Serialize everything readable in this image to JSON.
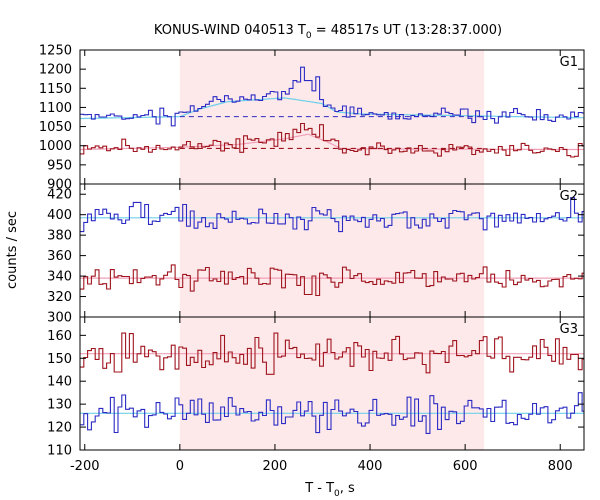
{
  "chart_data": {
    "type": "line",
    "title_prefix": "KONUS-WIND 040513 T",
    "title_sub": "0",
    "title_suffix": " = 48517s UT (13:28:37.000)",
    "ylabel": "counts / sec",
    "xlabel_prefix": "T - T",
    "xlabel_sub": "0",
    "xlabel_suffix": ", s",
    "xlim": [
      -210,
      850
    ],
    "xticks": [
      -200,
      0,
      200,
      400,
      600,
      800
    ],
    "shaded_interval": [
      0,
      640
    ],
    "colors": {
      "blue": "#2b2bc4",
      "red": "#a0141e",
      "fit_blue": "#6fd0ea",
      "fit_red": "#f2a0b8",
      "shade": "#fde9ea"
    },
    "panels": [
      {
        "label": "G1",
        "ylim": [
          900,
          1250
        ],
        "yticks": [
          900,
          950,
          1000,
          1050,
          1100,
          1150,
          1200,
          1250
        ],
        "series": [
          {
            "color": "blue",
            "baseline": 1075,
            "noise": 9,
            "bin": 8,
            "seed": 11,
            "pulse": [
              [
                -210,
                1075
              ],
              [
                0,
                1078
              ],
              [
                40,
                1095
              ],
              [
                80,
                1115
              ],
              [
                160,
                1125
              ],
              [
                230,
                1140
              ],
              [
                260,
                1155
              ],
              [
                290,
                1135
              ],
              [
                330,
                1090
              ],
              [
                380,
                1083
              ],
              [
                600,
                1080
              ],
              [
                850,
                1075
              ]
            ],
            "spikes": [
              [
                260,
                1205
              ],
              [
                290,
                1180
              ],
              [
                240,
                1170
              ],
              [
                -40,
                1098
              ],
              [
                270,
                1170
              ]
            ]
          },
          {
            "color": "red",
            "baseline": 990,
            "noise": 8,
            "bin": 8,
            "seed": 23,
            "pulse": [
              [
                -210,
                992
              ],
              [
                0,
                995
              ],
              [
                60,
                1000
              ],
              [
                150,
                1005
              ],
              [
                200,
                1015
              ],
              [
                240,
                1035
              ],
              [
                270,
                1040
              ],
              [
                310,
                1010
              ],
              [
                340,
                993
              ],
              [
                850,
                990
              ]
            ],
            "spikes": [
              [
                260,
                1058
              ],
              [
                -120,
                1017
              ],
              [
                120,
                1018
              ],
              [
                295,
                1055
              ]
            ]
          }
        ],
        "fits": [
          {
            "color": "blue",
            "points": [
              [
                -210,
                1071
              ],
              [
                0,
                1076
              ],
              [
                40,
                1095
              ],
              [
                100,
                1115
              ],
              [
                220,
                1125
              ],
              [
                300,
                1110
              ],
              [
                330,
                1088
              ],
              [
                380,
                1083
              ],
              [
                850,
                1073
              ]
            ]
          },
          {
            "color": "red",
            "points": [
              [
                -210,
                990
              ],
              [
                0,
                996
              ],
              [
                120,
                1003
              ],
              [
                220,
                1018
              ],
              [
                270,
                1030
              ],
              [
                310,
                1010
              ],
              [
                340,
                992
              ],
              [
                850,
                990
              ]
            ]
          }
        ],
        "dashed": [
          {
            "color": "blue",
            "value": 1076,
            "from": 0,
            "to": 640
          },
          {
            "color": "red",
            "value": 993,
            "from": 0,
            "to": 640
          }
        ]
      },
      {
        "label": "G2",
        "ylim": [
          300,
          430
        ],
        "yticks": [
          300,
          320,
          340,
          360,
          380,
          400,
          420
        ],
        "series": [
          {
            "color": "blue",
            "baseline": 396,
            "noise": 6,
            "bin": 8,
            "seed": 37,
            "pulse": [],
            "spikes": [
              [
                -90,
                412
              ],
              [
                -70,
                410
              ],
              [
                10,
                410
              ]
            ]
          },
          {
            "color": "red",
            "baseline": 338,
            "noise": 5,
            "bin": 8,
            "seed": 51,
            "pulse": [],
            "spikes": [
              [
                270,
                322
              ],
              [
                290,
                321
              ],
              [
                640,
                349
              ]
            ]
          }
        ],
        "fits": [
          {
            "color": "blue",
            "points": [
              [
                -210,
                397
              ],
              [
                850,
                397
              ]
            ]
          },
          {
            "color": "red",
            "points": [
              [
                -210,
                338
              ],
              [
                850,
                338
              ]
            ]
          }
        ],
        "dashed": []
      },
      {
        "label": "G3",
        "ylim": [
          110,
          168
        ],
        "yticks": [
          110,
          120,
          130,
          140,
          150,
          160
        ],
        "series": [
          {
            "color": "red",
            "baseline": 152,
            "noise": 4,
            "bin": 8,
            "seed": 67,
            "pulse": [],
            "spikes": [
              [
                -120,
                161
              ],
              [
                -130,
                144
              ],
              [
                -40,
                145
              ],
              [
                190,
                143
              ],
              [
                200,
                161
              ],
              [
                840,
                145
              ]
            ]
          },
          {
            "color": "blue",
            "baseline": 126,
            "noise": 3.5,
            "bin": 8,
            "seed": 79,
            "pulse": [],
            "spikes": [
              [
                -120,
                134
              ],
              [
                545,
                119
              ],
              [
                840,
                135
              ]
            ]
          }
        ],
        "fits": [
          {
            "color": "red",
            "points": [
              [
                -210,
                152
              ],
              [
                850,
                152
              ]
            ]
          },
          {
            "color": "blue",
            "points": [
              [
                -210,
                126
              ],
              [
                850,
                126
              ]
            ]
          }
        ],
        "dashed": []
      }
    ]
  }
}
